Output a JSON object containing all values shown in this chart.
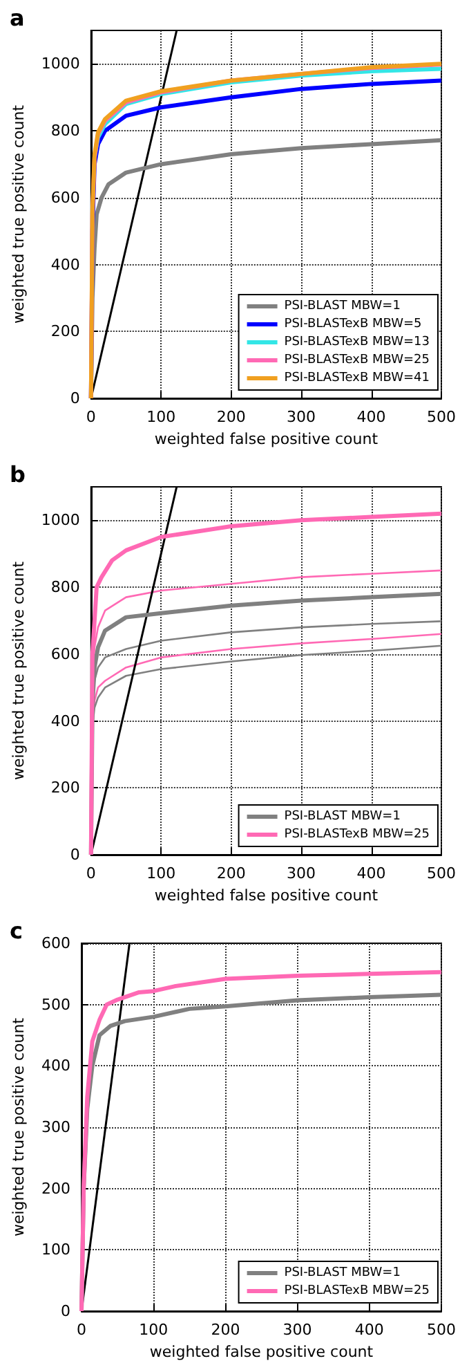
{
  "chart_data": [
    {
      "type": "line",
      "title": "a",
      "xlabel": "weighted false positive count",
      "ylabel": "weighted true positive count",
      "xlim": [
        0,
        500
      ],
      "ylim": [
        0,
        1100
      ],
      "xticks": [
        0,
        100,
        200,
        300,
        400,
        500
      ],
      "yticks": [
        0,
        200,
        400,
        600,
        800,
        1000
      ],
      "grid": true,
      "legend": "bottom right",
      "marker": "none",
      "line_style": "solid",
      "series": [
        {
          "name": "PSI-BLAST MBW=1",
          "color": "#808080",
          "x": [
            0,
            2,
            5,
            8,
            15,
            25,
            50,
            100,
            150,
            200,
            300,
            400,
            500
          ],
          "values": [
            0,
            300,
            450,
            550,
            600,
            640,
            675,
            700,
            715,
            730,
            748,
            760,
            772
          ]
        },
        {
          "name": "PSI-BLASTexB MBW=5",
          "color": "#0000ff",
          "x": [
            0,
            2,
            5,
            10,
            20,
            50,
            100,
            150,
            200,
            300,
            400,
            500
          ],
          "values": [
            0,
            500,
            700,
            760,
            800,
            845,
            870,
            885,
            900,
            925,
            940,
            950
          ]
        },
        {
          "name": "PSI-BLASTexB MBW=13",
          "color": "#33e6e6",
          "x": [
            5,
            10,
            20,
            50,
            100,
            200,
            300,
            400,
            500
          ],
          "values": [
            720,
            780,
            820,
            880,
            910,
            945,
            965,
            978,
            985
          ]
        },
        {
          "name": "PSI-BLASTexB MBW=25",
          "color": "#ff69b4",
          "x": [
            0,
            2,
            5,
            10,
            20,
            50,
            100,
            200,
            300,
            400,
            500
          ],
          "values": [
            0,
            550,
            720,
            790,
            830,
            885,
            915,
            950,
            970,
            988,
            998
          ]
        },
        {
          "name": "PSI-BLASTexB MBW=41",
          "color": "#f0a020",
          "x": [
            0,
            2,
            5,
            10,
            20,
            50,
            100,
            200,
            300,
            400,
            500
          ],
          "values": [
            0,
            560,
            730,
            795,
            835,
            890,
            918,
            950,
            970,
            990,
            1000
          ]
        },
        {
          "color": "#000000",
          "x": [
            0,
            122.2
          ],
          "values": [
            0,
            1100
          ]
        }
      ]
    },
    {
      "type": "line",
      "title": "b",
      "xlabel": "weighted false positive count",
      "ylabel": "weighted true positive count",
      "xlim": [
        0,
        500
      ],
      "ylim": [
        0,
        1100
      ],
      "xticks": [
        0,
        100,
        200,
        300,
        400,
        500
      ],
      "yticks": [
        0,
        200,
        400,
        600,
        800,
        1000
      ],
      "grid": true,
      "legend": "bottom right",
      "marker": "none",
      "line_style": "solid",
      "series": [
        {
          "name": "PSI-BLAST MBW=1",
          "color": "#808080",
          "x": [
            0,
            2,
            5,
            10,
            20,
            50,
            100,
            200,
            300,
            400,
            500
          ],
          "values": [
            0,
            450,
            560,
            620,
            670,
            710,
            722,
            745,
            760,
            770,
            780
          ]
        },
        {
          "name": "PSI-BLASTexB MBW=25",
          "color": "#ff69b4",
          "x": [
            0,
            2,
            5,
            8,
            15,
            30,
            50,
            100,
            200,
            300,
            400,
            500
          ],
          "values": [
            0,
            600,
            700,
            800,
            830,
            880,
            910,
            950,
            982,
            1000,
            1010,
            1020
          ]
        },
        {
          "color": "#ff69b4",
          "x": [
            0,
            2,
            5,
            10,
            20,
            50,
            100,
            200,
            300,
            400,
            500
          ],
          "values": [
            0,
            500,
            620,
            680,
            730,
            770,
            790,
            810,
            830,
            840,
            850
          ]
        },
        {
          "color": "#808080",
          "x": [
            0,
            2,
            5,
            10,
            20,
            50,
            100,
            200,
            300,
            400,
            500
          ],
          "values": [
            0,
            420,
            520,
            560,
            590,
            615,
            640,
            665,
            680,
            690,
            698
          ]
        },
        {
          "color": "#ff69b4",
          "x": [
            0,
            2,
            5,
            10,
            20,
            50,
            100,
            200,
            300,
            400,
            500
          ],
          "values": [
            0,
            400,
            460,
            500,
            520,
            560,
            590,
            615,
            632,
            645,
            660
          ]
        },
        {
          "color": "#808080",
          "x": [
            0,
            2,
            5,
            10,
            20,
            50,
            100,
            200,
            300,
            400,
            500
          ],
          "values": [
            0,
            380,
            440,
            470,
            500,
            535,
            555,
            578,
            597,
            610,
            625
          ]
        },
        {
          "color": "#000000",
          "x": [
            0,
            122.2
          ],
          "values": [
            0,
            1100
          ]
        }
      ]
    },
    {
      "type": "line",
      "title": "c",
      "xlabel": "weighted false positive count",
      "ylabel": "weighted true positive count",
      "xlim": [
        0,
        500
      ],
      "ylim": [
        0,
        600
      ],
      "xticks": [
        0,
        100,
        200,
        300,
        400,
        500
      ],
      "yticks": [
        0,
        100,
        200,
        300,
        400,
        500,
        600
      ],
      "grid": true,
      "legend": "bottom right",
      "marker": "none",
      "line_style": "solid",
      "series": [
        {
          "name": "PSI-BLAST MBW=1",
          "color": "#808080",
          "x": [
            0,
            3,
            8,
            15,
            25,
            40,
            60,
            100,
            150,
            200,
            300,
            400,
            500
          ],
          "values": [
            0,
            200,
            330,
            400,
            450,
            465,
            473,
            480,
            493,
            497,
            507,
            512,
            516
          ]
        },
        {
          "name": "PSI-BLASTexB MBW=25",
          "color": "#ff69b4",
          "x": [
            0,
            3,
            8,
            15,
            25,
            35,
            50,
            80,
            100,
            130,
            200,
            300,
            400,
            500
          ],
          "values": [
            0,
            200,
            350,
            440,
            475,
            500,
            508,
            520,
            522,
            530,
            542,
            547,
            550,
            553
          ]
        },
        {
          "color": "#000000",
          "x": [
            0,
            66.7
          ],
          "values": [
            0,
            600
          ]
        }
      ]
    }
  ]
}
